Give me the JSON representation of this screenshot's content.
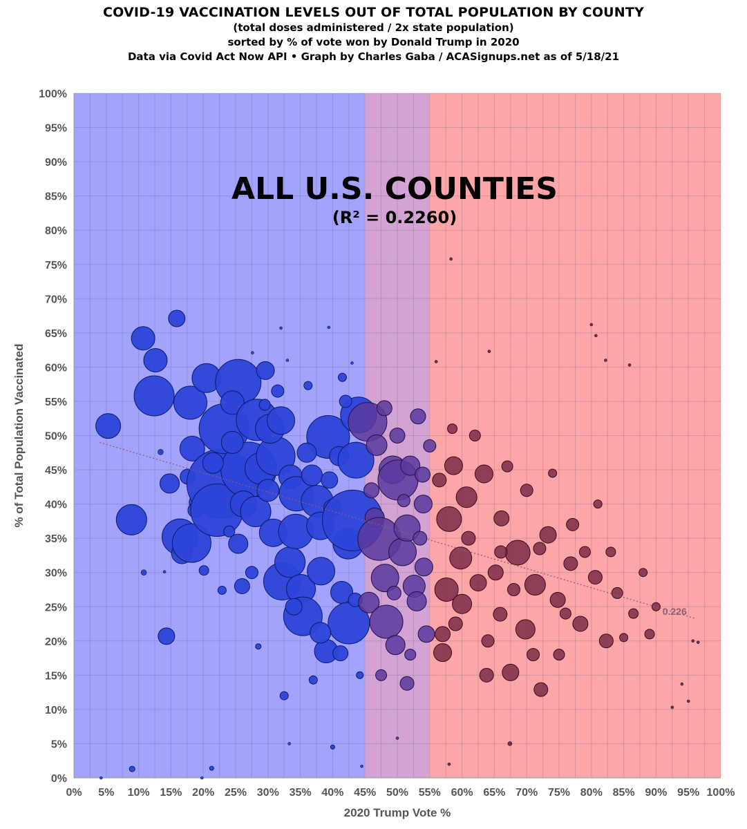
{
  "header": {
    "title": "COVID-19 VACCINATION LEVELS OUT OF TOTAL POPULATION BY COUNTY",
    "subtitle_1": "(total doses administered / 2x state population)",
    "subtitle_2": "sorted by % of vote won by Donald Trump in 2020",
    "subtitle_3": "Data via Covid Act Now API • Graph by Charles Gaba / ACASignups.net as of 5/18/21"
  },
  "chart_data": {
    "type": "scatter",
    "title": "COVID-19 VACCINATION LEVELS OUT OF TOTAL POPULATION BY COUNTY",
    "annotation_main": "ALL U.S. COUNTIES",
    "annotation_sub": "(R² = 0.2260)",
    "trendline_label": "0.226",
    "xlabel": "2020 Trump Vote %",
    "ylabel": "% of Total Population Vaccinated",
    "xlim": [
      0,
      100
    ],
    "ylim": [
      0,
      100
    ],
    "x_ticks": [
      "0%",
      "5%",
      "10%",
      "15%",
      "20%",
      "25%",
      "30%",
      "35%",
      "40%",
      "45%",
      "50%",
      "55%",
      "60%",
      "65%",
      "70%",
      "75%",
      "80%",
      "85%",
      "90%",
      "95%",
      "100%"
    ],
    "y_ticks": [
      "0%",
      "5%",
      "10%",
      "15%",
      "20%",
      "25%",
      "30%",
      "35%",
      "40%",
      "45%",
      "50%",
      "55%",
      "60%",
      "65%",
      "70%",
      "75%",
      "80%",
      "85%",
      "90%",
      "95%",
      "100%"
    ],
    "grid": true,
    "background_bands": [
      {
        "from": 0,
        "to": 45,
        "color": "#a3a3fb"
      },
      {
        "from": 45,
        "to": 55,
        "color": "#d3a3d3"
      },
      {
        "from": 55,
        "to": 100,
        "color": "#fca6a8"
      }
    ],
    "colors": {
      "blue_bubble": "#2c44d8",
      "purple_bubble": "#5b3a9e",
      "red_bubble": "#7c2b46",
      "trendline": "#8a5d78"
    },
    "trendline": {
      "x": [
        4,
        96
      ],
      "y": [
        49.0,
        23.3
      ]
    },
    "bubble_note": "x = Trump vote %, y = % vaccinated, r = relative county population",
    "series": [
      {
        "points": [
          [
            5.3,
            51.4,
            18
          ],
          [
            8.9,
            37.7,
            22
          ],
          [
            10.7,
            64.2,
            17
          ],
          [
            12.6,
            61.0,
            17
          ],
          [
            12.4,
            55.8,
            29
          ],
          [
            15.9,
            67.1,
            12
          ],
          [
            14.3,
            20.7,
            12
          ],
          [
            14.8,
            43.0,
            14
          ],
          [
            16.4,
            35.2,
            26
          ],
          [
            16.7,
            32.8,
            15
          ],
          [
            18.0,
            54.8,
            24
          ],
          [
            18.3,
            48.1,
            18
          ],
          [
            17.6,
            44.0,
            11
          ],
          [
            18.2,
            34.3,
            28
          ],
          [
            20.5,
            58.4,
            21
          ],
          [
            19.2,
            40.2,
            13
          ],
          [
            18.8,
            39.1,
            11
          ],
          [
            22.8,
            43.0,
            50
          ],
          [
            23.2,
            51.0,
            36
          ],
          [
            22.1,
            39.1,
            38
          ],
          [
            25.4,
            57.8,
            33
          ],
          [
            24.5,
            54.8,
            17
          ],
          [
            27.0,
            45.0,
            40
          ],
          [
            28.3,
            52.3,
            30
          ],
          [
            28.9,
            45.2,
            23
          ],
          [
            26.2,
            40.0,
            19
          ],
          [
            25.4,
            34.2,
            14
          ],
          [
            28.1,
            38.9,
            22
          ],
          [
            31.2,
            47.0,
            28
          ],
          [
            29.6,
            59.5,
            13
          ],
          [
            30.3,
            51.0,
            21
          ],
          [
            32.0,
            52.2,
            20
          ],
          [
            33.5,
            44.0,
            17
          ],
          [
            30.8,
            35.8,
            20
          ],
          [
            32.2,
            28.7,
            27
          ],
          [
            34.4,
            41.5,
            25
          ],
          [
            33.4,
            31.5,
            22
          ],
          [
            35.1,
            27.6,
            21
          ],
          [
            35.4,
            23.6,
            28
          ],
          [
            34.3,
            36.0,
            25
          ],
          [
            36.8,
            44.2,
            15
          ],
          [
            37.6,
            40.4,
            23
          ],
          [
            38.1,
            36.8,
            20
          ],
          [
            39.3,
            49.8,
            31
          ],
          [
            38.2,
            30.2,
            20
          ],
          [
            39.0,
            18.5,
            17
          ],
          [
            41.0,
            47.0,
            14
          ],
          [
            40.0,
            39.4,
            13
          ],
          [
            41.4,
            27.1,
            16
          ],
          [
            42.4,
            34.2,
            22
          ],
          [
            42.5,
            22.6,
            30
          ],
          [
            43.1,
            37.6,
            44
          ],
          [
            43.6,
            46.4,
            26
          ],
          [
            44.0,
            53.0,
            26
          ],
          [
            38.1,
            21.2,
            15
          ],
          [
            41.2,
            18.2,
            11
          ],
          [
            28.5,
            19.2,
            4
          ],
          [
            32.5,
            12.0,
            6
          ],
          [
            20.1,
            30.3,
            7
          ],
          [
            36.2,
            57.3,
            6
          ],
          [
            29.5,
            54.5,
            8
          ],
          [
            22.9,
            27.4,
            6
          ],
          [
            26.0,
            28.0,
            11
          ],
          [
            24.0,
            36.0,
            8
          ],
          [
            34.0,
            25.0,
            12
          ],
          [
            37.0,
            14.3,
            6
          ],
          [
            44.2,
            15.0,
            5
          ],
          [
            40.0,
            4.5,
            3
          ],
          [
            9.0,
            1.3,
            4
          ],
          [
            21.3,
            1.4,
            3
          ],
          [
            42.0,
            55.0,
            9
          ],
          [
            41.5,
            58.5,
            6
          ],
          [
            36.0,
            47.5,
            14
          ],
          [
            30.0,
            42.0,
            16
          ],
          [
            27.5,
            30.0,
            9
          ],
          [
            24.5,
            49.0,
            16
          ],
          [
            21.5,
            46.0,
            15
          ],
          [
            39.5,
            43.5,
            12
          ],
          [
            43.5,
            26.0,
            10
          ],
          [
            31.5,
            56.5,
            9
          ]
        ]
      },
      {
        "points": [
          [
            45.4,
            52.0,
            28
          ],
          [
            45.6,
            25.6,
            15
          ],
          [
            46.5,
            38.0,
            14
          ],
          [
            47.2,
            34.9,
            31
          ],
          [
            48.1,
            29.2,
            20
          ],
          [
            48.3,
            22.8,
            24
          ],
          [
            49.3,
            45.0,
            20
          ],
          [
            49.7,
            19.4,
            14
          ],
          [
            50.1,
            43.5,
            29
          ],
          [
            50.8,
            33.0,
            20
          ],
          [
            51.5,
            36.5,
            19
          ],
          [
            52.6,
            28.0,
            16
          ],
          [
            53.0,
            25.8,
            14
          ],
          [
            53.2,
            52.8,
            11
          ],
          [
            52.0,
            45.6,
            14
          ],
          [
            54.0,
            40.0,
            13
          ],
          [
            54.1,
            30.8,
            13
          ],
          [
            53.9,
            44.3,
            11
          ],
          [
            54.5,
            21.0,
            12
          ],
          [
            51.0,
            40.5,
            9
          ],
          [
            51.5,
            13.8,
            10
          ],
          [
            46.8,
            48.6,
            15
          ],
          [
            48.0,
            54.0,
            11
          ],
          [
            50.0,
            50.0,
            11
          ],
          [
            52.0,
            18.0,
            8
          ],
          [
            55.0,
            48.5,
            9
          ],
          [
            49.5,
            27.0,
            10
          ],
          [
            46.0,
            42.0,
            11
          ],
          [
            47.5,
            15.0,
            8
          ],
          [
            53.5,
            35.0,
            10
          ]
        ]
      },
      {
        "points": [
          [
            57.0,
            18.3,
            13
          ],
          [
            57.0,
            21.0,
            11
          ],
          [
            58.0,
            37.8,
            18
          ],
          [
            57.6,
            27.5,
            17
          ],
          [
            58.7,
            45.6,
            13
          ],
          [
            59.8,
            32.1,
            16
          ],
          [
            60.7,
            41.0,
            15
          ],
          [
            60.0,
            25.4,
            14
          ],
          [
            62.5,
            28.5,
            12
          ],
          [
            63.4,
            44.4,
            13
          ],
          [
            65.2,
            30.0,
            11
          ],
          [
            67.5,
            15.4,
            12
          ],
          [
            68.6,
            32.9,
            18
          ],
          [
            69.8,
            21.7,
            14
          ],
          [
            66.1,
            37.9,
            11
          ],
          [
            72.2,
            12.9,
            10
          ],
          [
            71.3,
            28.2,
            15
          ],
          [
            73.3,
            35.5,
            12
          ],
          [
            63.8,
            15.0,
            10
          ],
          [
            65.9,
            23.9,
            10
          ],
          [
            74.8,
            26.0,
            11
          ],
          [
            76.8,
            31.3,
            10
          ],
          [
            78.3,
            22.5,
            11
          ],
          [
            80.6,
            29.3,
            10
          ],
          [
            82.3,
            20.0,
            10
          ],
          [
            77.1,
            37.0,
            9
          ],
          [
            70.0,
            42.0,
            9
          ],
          [
            62.0,
            50.0,
            8
          ],
          [
            58.5,
            51.0,
            7
          ],
          [
            59.0,
            22.5,
            10
          ],
          [
            56.5,
            43.5,
            10
          ],
          [
            64.0,
            20.0,
            9
          ],
          [
            67.0,
            45.5,
            8
          ],
          [
            71.0,
            18.0,
            9
          ],
          [
            75.0,
            18.0,
            8
          ],
          [
            79.0,
            33.0,
            8
          ],
          [
            84.0,
            27.0,
            8
          ],
          [
            86.5,
            24.0,
            7
          ],
          [
            88.0,
            30.0,
            6
          ],
          [
            89.0,
            21.0,
            7
          ],
          [
            90.0,
            25.0,
            6
          ],
          [
            81.0,
            40.0,
            6
          ],
          [
            74.0,
            44.5,
            6
          ],
          [
            68.0,
            27.5,
            9
          ],
          [
            61.0,
            35.0,
            10
          ],
          [
            66.0,
            33.0,
            9
          ],
          [
            72.0,
            33.5,
            9
          ],
          [
            76.0,
            24.0,
            8
          ],
          [
            83.0,
            33.0,
            7
          ],
          [
            85.0,
            20.5,
            6
          ]
        ]
      }
    ],
    "outliers": [
      [
        58.3,
        75.8,
        2
      ],
      [
        56.0,
        60.8,
        2
      ],
      [
        80.0,
        66.2,
        2
      ],
      [
        80.7,
        64.6,
        2
      ],
      [
        82.2,
        61.0,
        2
      ],
      [
        85.9,
        60.3,
        2
      ],
      [
        64.2,
        62.3,
        2
      ],
      [
        39.4,
        65.8,
        2
      ],
      [
        32.0,
        65.7,
        2
      ],
      [
        43.0,
        60.6,
        2
      ],
      [
        33.0,
        61.0,
        2
      ],
      [
        27.6,
        62.1,
        2
      ],
      [
        58.0,
        2.0,
        2
      ],
      [
        67.4,
        5.0,
        3
      ],
      [
        50.0,
        5.8,
        2
      ],
      [
        33.3,
        5.0,
        2
      ],
      [
        44.5,
        1.7,
        2
      ],
      [
        95.7,
        20.0,
        2
      ],
      [
        96.5,
        19.8,
        2
      ],
      [
        92.5,
        10.3,
        2
      ],
      [
        95.0,
        11.2,
        2
      ],
      [
        94.0,
        13.7,
        2
      ],
      [
        4.2,
        0.0,
        2
      ],
      [
        19.8,
        0.0,
        2
      ],
      [
        10.8,
        30.0,
        4
      ],
      [
        13.4,
        47.6,
        4
      ],
      [
        14.0,
        30.1,
        2
      ]
    ]
  }
}
